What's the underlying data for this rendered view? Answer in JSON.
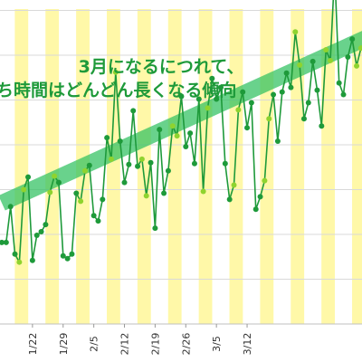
{
  "chart_data": {
    "type": "line",
    "annotation": [
      "3月になるにつれて、",
      "ち時間はどんどん長くなる傾向"
    ],
    "x_tick_labels": [
      "1/22",
      "1/29",
      "2/5",
      "2/12",
      "2/19",
      "2/26",
      "3/5",
      "3/12"
    ],
    "grid": true,
    "colors": {
      "line": "#1e9a3a",
      "point_weekday": "#1e9a3a",
      "point_highlight": "#8fd32f",
      "trend": "#2fc060",
      "highlight_band": "#fff8a8",
      "grid": "#d9d9d9"
    },
    "trend": {
      "x": [
        0,
        88
      ],
      "y": [
        2.7,
        6.6
      ]
    },
    "highlight_days": [
      4,
      5,
      11,
      12,
      18,
      19,
      25,
      26,
      32,
      33,
      39,
      40,
      46,
      47,
      53,
      54,
      60,
      61,
      67,
      68,
      74,
      75,
      81,
      82
    ],
    "series": [
      {
        "x": [
          0,
          1,
          2,
          3,
          4,
          5,
          6,
          7,
          8,
          9,
          10,
          11,
          12,
          13,
          14,
          15,
          16,
          17,
          18,
          19,
          20,
          21,
          22,
          23,
          24,
          25,
          26,
          27,
          28,
          29,
          30,
          31,
          32,
          33,
          34,
          35,
          36,
          37,
          38,
          39,
          40,
          41,
          42,
          43,
          44,
          45,
          46,
          47,
          48,
          49,
          50,
          51,
          52,
          53,
          54,
          55,
          56,
          57,
          58,
          59,
          60,
          61,
          62,
          63,
          64,
          65,
          66,
          67,
          68,
          69,
          70,
          71,
          72,
          73,
          74,
          75,
          76,
          77,
          78,
          79,
          80,
          81,
          82,
          83,
          84,
          85,
          86,
          87,
          88
        ],
        "y": [
          1.82,
          1.82,
          2.62,
          1.56,
          1.38,
          3.0,
          3.28,
          1.42,
          1.98,
          2.06,
          2.22,
          2.94,
          3.3,
          3.16,
          1.52,
          1.46,
          1.56,
          2.92,
          2.74,
          3.42,
          3.54,
          2.42,
          2.3,
          2.78,
          4.16,
          3.68,
          5.62,
          4.08,
          3.16,
          3.56,
          4.76,
          3.52,
          3.68,
          2.86,
          3.6,
          2.14,
          4.34,
          2.92,
          3.42,
          4.42,
          4.2,
          5.08,
          3.96,
          4.26,
          3.58,
          5.02,
          2.96,
          4.82,
          5.48,
          5.02,
          5.28,
          3.58,
          2.78,
          3.1,
          4.78,
          5.18,
          4.38,
          4.94,
          2.56,
          2.84,
          3.2,
          4.58,
          5.12,
          4.08,
          5.18,
          5.6,
          5.28,
          6.52,
          5.78,
          4.58,
          4.94,
          5.86,
          5.22,
          4.42,
          6.12,
          5.88,
          7.88,
          5.38,
          5.12,
          5.96,
          6.36,
          5.76,
          6.16,
          6.02,
          6.44,
          5.34,
          5.56,
          6.08,
          6.3
        ]
      }
    ]
  }
}
